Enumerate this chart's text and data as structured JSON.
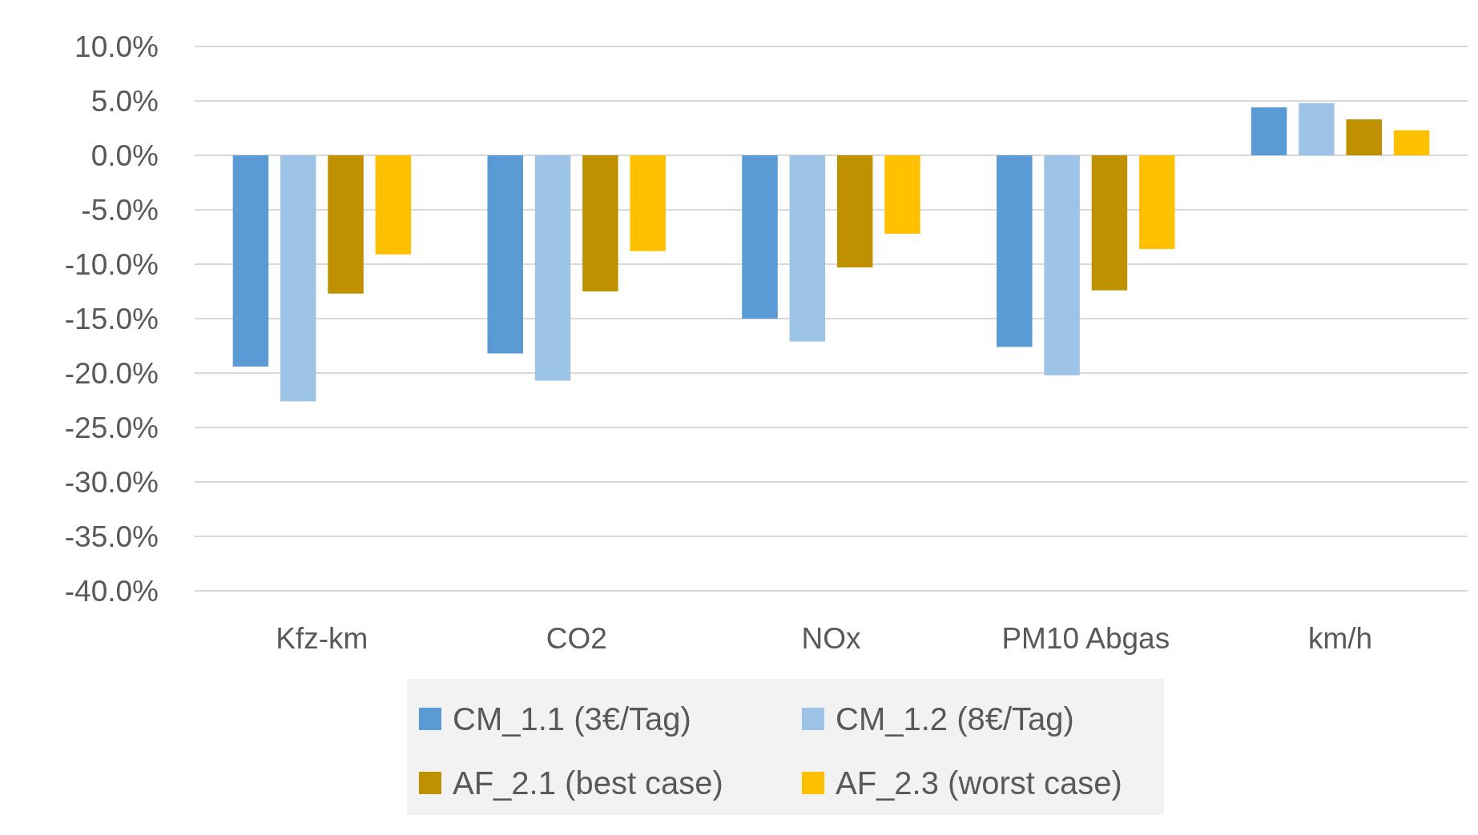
{
  "chart_data": {
    "type": "bar",
    "categories": [
      "Kfz-km",
      "CO2",
      "NOx",
      "PM10 Abgas",
      "km/h"
    ],
    "series": [
      {
        "name": "CM_1.1 (3€/Tag)",
        "color": "#5b9bd5",
        "values": [
          -19.4,
          -18.2,
          -15.0,
          -17.6,
          4.4
        ]
      },
      {
        "name": "CM_1.2 (8€/Tag)",
        "color": "#9dc3e6",
        "values": [
          -22.6,
          -20.7,
          -17.1,
          -20.2,
          4.8
        ]
      },
      {
        "name": "AF_2.1 (best case)",
        "color": "#bf9000",
        "values": [
          -12.7,
          -12.5,
          -10.3,
          -12.4,
          3.3
        ]
      },
      {
        "name": "AF_2.3 (worst case)",
        "color": "#ffc000",
        "values": [
          -9.1,
          -8.8,
          -7.2,
          -8.6,
          2.3
        ]
      }
    ],
    "ylim": [
      -40,
      10
    ],
    "yticks": [
      {
        "value": 10,
        "label": "10.0%"
      },
      {
        "value": 5,
        "label": "5.0%"
      },
      {
        "value": 0,
        "label": "0.0%"
      },
      {
        "value": -5,
        "label": "-5.0%"
      },
      {
        "value": -10,
        "label": "-10.0%"
      },
      {
        "value": -15,
        "label": "-15.0%"
      },
      {
        "value": -20,
        "label": "-20.0%"
      },
      {
        "value": -25,
        "label": "-25.0%"
      },
      {
        "value": -30,
        "label": "-30.0%"
      },
      {
        "value": -35,
        "label": "-35.0%"
      },
      {
        "value": -40,
        "label": "-40.0%"
      }
    ],
    "grid": "y",
    "legend": "bottom"
  }
}
